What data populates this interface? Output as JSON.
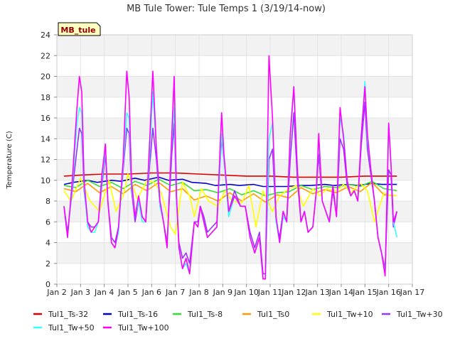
{
  "chart_data": {
    "type": "line",
    "title": "MB Tule Tower: Tule Temps 1 (3/19/14-now)",
    "ylabel": "Temperature (C)",
    "xlabel": "",
    "badge": "MB_tule",
    "ylim": [
      0,
      24
    ],
    "yticks": [
      0,
      2,
      4,
      6,
      8,
      10,
      12,
      14,
      16,
      18,
      20,
      22,
      24
    ],
    "xlim": [
      2,
      17
    ],
    "xtick_labels": [
      "Jan 2",
      "Jan 3",
      "Jan 4",
      "Jan 5",
      "Jan 6",
      "Jan 7",
      "Jan 8",
      "Jan 9",
      "Jan 10",
      "Jan 11",
      "Jan 12",
      "Jan 13",
      "Jan 14",
      "Jan 15",
      "Jan 16",
      "Jan 17"
    ],
    "grid": true,
    "legend_position": "bottom",
    "series": [
      {
        "name": "Tul1_Ts-32",
        "color": "#dd0000",
        "x": [
          2.3,
          3,
          4,
          5,
          6,
          7,
          8,
          9,
          10,
          11,
          12,
          13,
          14,
          15,
          15.5,
          16.35
        ],
        "y": [
          10.4,
          10.5,
          10.6,
          10.6,
          10.7,
          10.7,
          10.6,
          10.5,
          10.4,
          10.4,
          10.3,
          10.3,
          10.3,
          10.4,
          10.4,
          10.4
        ]
      },
      {
        "name": "Tul1_Ts-16",
        "color": "#0000cc",
        "x": [
          2.3,
          2.7,
          3.3,
          3.7,
          4.3,
          4.7,
          5.3,
          5.7,
          6.3,
          6.7,
          7.3,
          7.7,
          8.3,
          8.7,
          9.3,
          9.7,
          10.3,
          10.7,
          11.3,
          11.7,
          12.3,
          12.7,
          13.3,
          13.7,
          14.3,
          14.7,
          15.3,
          15.7,
          16.35
        ],
        "y": [
          9.6,
          9.8,
          10.0,
          9.8,
          10.0,
          9.9,
          10.2,
          10.0,
          10.3,
          10.0,
          10.1,
          9.8,
          9.7,
          9.5,
          9.6,
          9.5,
          9.6,
          9.4,
          9.4,
          9.4,
          9.5,
          9.5,
          9.6,
          9.5,
          9.6,
          9.5,
          9.7,
          9.6,
          9.6
        ]
      },
      {
        "name": "Tul1_Ts-8",
        "color": "#33dd33",
        "x": [
          2.3,
          2.8,
          3.3,
          3.8,
          4.3,
          4.8,
          5.3,
          5.8,
          6.3,
          6.8,
          7.3,
          7.8,
          8.3,
          8.8,
          9.3,
          9.8,
          10.3,
          10.8,
          11.3,
          11.8,
          12.3,
          12.8,
          13.3,
          13.8,
          14.3,
          14.8,
          15.3,
          15.8,
          16.35
        ],
        "y": [
          9.5,
          9.3,
          10.0,
          9.4,
          9.8,
          9.2,
          9.9,
          9.5,
          10.1,
          9.5,
          9.8,
          9.0,
          9.1,
          8.8,
          9.2,
          8.6,
          9.0,
          8.5,
          8.8,
          8.9,
          9.5,
          9.1,
          9.4,
          9.3,
          9.6,
          9.4,
          9.9,
          9.2,
          9.0
        ]
      },
      {
        "name": "Tul1_Ts0",
        "color": "#ff9900",
        "x": [
          2.3,
          2.8,
          3.3,
          3.8,
          4.3,
          4.8,
          5.3,
          5.8,
          6.3,
          6.8,
          7.3,
          7.8,
          8.3,
          8.8,
          9.3,
          9.8,
          10.3,
          10.8,
          11.3,
          11.8,
          12.3,
          12.8,
          13.3,
          13.8,
          14.3,
          14.8,
          15.3,
          15.8,
          16.35
        ],
        "y": [
          9.2,
          8.9,
          9.7,
          8.8,
          9.4,
          8.7,
          9.6,
          9.0,
          9.8,
          8.9,
          9.2,
          8.1,
          8.5,
          8.0,
          8.8,
          8.0,
          8.7,
          7.9,
          8.6,
          8.3,
          9.3,
          8.7,
          9.1,
          8.8,
          9.4,
          8.9,
          9.8,
          8.6,
          8.5
        ]
      },
      {
        "name": "Tul1_Tw+10",
        "color": "#ffff00",
        "x": [
          2.3,
          2.6,
          3.0,
          3.4,
          3.8,
          4.2,
          4.5,
          4.8,
          5.0,
          5.4,
          5.8,
          6.1,
          6.4,
          6.8,
          7.0,
          7.3,
          7.6,
          7.8,
          8.1,
          8.4,
          8.8,
          9.1,
          9.4,
          9.8,
          10.1,
          10.4,
          10.7,
          11.1,
          11.4,
          11.8,
          12.1,
          12.4,
          12.8,
          13.1,
          13.4,
          13.8,
          14.1,
          14.4,
          14.8,
          15.1,
          15.4,
          15.8,
          16.1,
          16.35
        ],
        "y": [
          9.0,
          8.0,
          10.2,
          8.0,
          7.0,
          10.0,
          7.0,
          8.5,
          10.6,
          8.2,
          10.0,
          9.8,
          8.8,
          5.5,
          4.8,
          9.8,
          8.5,
          6.5,
          9.2,
          8.0,
          7.5,
          9.0,
          8.0,
          7.8,
          9.5,
          5.5,
          9.0,
          7.0,
          8.5,
          9.2,
          9.5,
          7.5,
          9.2,
          8.5,
          9.2,
          9.0,
          9.6,
          8.8,
          9.7,
          9.0,
          6.0,
          8.8,
          8.5,
          8.5
        ]
      },
      {
        "name": "Tul1_Tw+30",
        "color": "#9933ff",
        "x": [
          2.3,
          2.45,
          2.65,
          2.85,
          2.95,
          3.05,
          3.15,
          3.3,
          3.45,
          3.6,
          3.75,
          3.9,
          4.05,
          4.15,
          4.3,
          4.45,
          4.6,
          4.8,
          4.95,
          5.05,
          5.15,
          5.3,
          5.45,
          5.6,
          5.75,
          5.9,
          6.05,
          6.2,
          6.35,
          6.5,
          6.65,
          6.85,
          6.95,
          7.05,
          7.15,
          7.3,
          7.45,
          7.6,
          7.8,
          7.95,
          8.05,
          8.2,
          8.35,
          8.55,
          8.75,
          8.95,
          9.05,
          9.25,
          9.5,
          9.75,
          9.95,
          10.15,
          10.35,
          10.55,
          10.7,
          10.8,
          10.95,
          11.1,
          11.25,
          11.4,
          11.55,
          11.7,
          11.85,
          12.0,
          12.15,
          12.3,
          12.45,
          12.6,
          12.8,
          12.95,
          13.05,
          13.2,
          13.35,
          13.5,
          13.65,
          13.8,
          13.95,
          14.1,
          14.25,
          14.4,
          14.55,
          14.7,
          14.85,
          15.0,
          15.1,
          15.25,
          15.4,
          15.55,
          15.7,
          15.85,
          16.0,
          16.1,
          16.2,
          16.35
        ],
        "y": [
          7.5,
          5.0,
          9.0,
          13.0,
          15.0,
          14.5,
          9.0,
          6.0,
          5.5,
          5.5,
          6.0,
          9.5,
          12.5,
          8.0,
          4.5,
          4.0,
          5.5,
          11.0,
          15.0,
          14.5,
          9.0,
          6.0,
          8.0,
          6.5,
          6.0,
          11.0,
          15.0,
          12.0,
          7.5,
          6.0,
          4.0,
          12.5,
          15.5,
          8.0,
          4.0,
          2.5,
          3.0,
          2.0,
          6.0,
          6.0,
          7.5,
          6.5,
          5.0,
          5.5,
          6.0,
          14.0,
          12.0,
          7.0,
          9.0,
          7.5,
          7.5,
          5.0,
          3.5,
          5.0,
          1.0,
          1.0,
          12.0,
          13.0,
          6.0,
          4.5,
          7.0,
          6.0,
          12.0,
          16.5,
          10.0,
          6.0,
          7.0,
          5.0,
          5.5,
          9.0,
          12.5,
          8.0,
          7.0,
          6.0,
          9.0,
          6.5,
          14.0,
          13.0,
          9.5,
          8.5,
          9.0,
          8.0,
          13.5,
          17.5,
          13.0,
          10.5,
          8.0,
          4.5,
          3.0,
          1.5,
          11.0,
          10.5,
          5.5,
          7.0
        ]
      },
      {
        "name": "Tul1_Tw+50",
        "color": "#33ffff",
        "x": [
          2.3,
          2.45,
          2.65,
          2.85,
          2.95,
          3.05,
          3.15,
          3.3,
          3.45,
          3.6,
          3.75,
          3.9,
          4.05,
          4.15,
          4.3,
          4.45,
          4.6,
          4.8,
          4.95,
          5.05,
          5.15,
          5.3,
          5.45,
          5.6,
          5.75,
          5.9,
          6.05,
          6.2,
          6.35,
          6.5,
          6.65,
          6.85,
          6.95,
          7.05,
          7.15,
          7.3,
          7.45,
          7.6,
          7.8,
          7.95,
          8.05,
          8.2,
          8.35,
          8.55,
          8.75,
          8.95,
          9.05,
          9.25,
          9.5,
          9.75,
          9.95,
          10.15,
          10.35,
          10.55,
          10.7,
          10.8,
          10.95,
          11.1,
          11.25,
          11.4,
          11.55,
          11.7,
          11.85,
          12.0,
          12.15,
          12.3,
          12.45,
          12.6,
          12.8,
          12.95,
          13.05,
          13.2,
          13.35,
          13.5,
          13.65,
          13.8,
          13.95,
          14.1,
          14.25,
          14.4,
          14.55,
          14.7,
          14.85,
          15.0,
          15.1,
          15.25,
          15.4,
          15.55,
          15.7,
          15.85,
          16.0,
          16.1,
          16.2,
          16.35
        ],
        "y": [
          7.5,
          4.5,
          9.5,
          15.5,
          17.0,
          16.5,
          9.5,
          5.5,
          5.0,
          5.0,
          6.0,
          10.0,
          13.0,
          8.0,
          4.0,
          3.5,
          5.0,
          11.5,
          16.5,
          16.0,
          9.5,
          6.5,
          8.0,
          6.0,
          6.0,
          12.0,
          18.5,
          13.0,
          7.5,
          6.0,
          3.5,
          14.0,
          17.0,
          8.0,
          3.5,
          1.5,
          2.0,
          1.0,
          6.0,
          5.5,
          7.5,
          6.0,
          4.5,
          5.0,
          5.5,
          14.5,
          12.0,
          6.5,
          8.5,
          7.5,
          7.5,
          4.5,
          3.0,
          4.5,
          0.5,
          0.5,
          14.0,
          15.5,
          6.0,
          4.0,
          6.5,
          6.0,
          14.0,
          19.0,
          11.0,
          6.0,
          7.0,
          5.0,
          5.5,
          9.0,
          14.0,
          8.0,
          7.0,
          6.0,
          9.5,
          6.5,
          16.0,
          14.5,
          10.0,
          8.5,
          9.0,
          8.0,
          14.5,
          19.5,
          14.0,
          11.0,
          8.0,
          4.5,
          3.0,
          1.0,
          15.5,
          11.5,
          6.0,
          4.5
        ]
      },
      {
        "name": "Tul1_Tw+100",
        "color": "#ff00ff",
        "x": [
          2.3,
          2.45,
          2.65,
          2.85,
          2.95,
          3.05,
          3.15,
          3.3,
          3.45,
          3.6,
          3.75,
          3.9,
          4.05,
          4.15,
          4.3,
          4.45,
          4.6,
          4.8,
          4.95,
          5.05,
          5.15,
          5.3,
          5.45,
          5.6,
          5.75,
          5.9,
          6.05,
          6.2,
          6.35,
          6.5,
          6.65,
          6.85,
          6.95,
          7.05,
          7.15,
          7.3,
          7.45,
          7.6,
          7.8,
          7.95,
          8.05,
          8.2,
          8.35,
          8.55,
          8.75,
          8.95,
          9.05,
          9.25,
          9.5,
          9.75,
          9.95,
          10.15,
          10.35,
          10.55,
          10.7,
          10.8,
          10.95,
          11.1,
          11.25,
          11.4,
          11.55,
          11.7,
          11.85,
          12.0,
          12.15,
          12.3,
          12.45,
          12.6,
          12.8,
          12.95,
          13.05,
          13.2,
          13.35,
          13.5,
          13.65,
          13.8,
          13.95,
          14.1,
          14.25,
          14.4,
          14.55,
          14.7,
          14.85,
          15.0,
          15.1,
          15.25,
          15.4,
          15.55,
          15.7,
          15.85,
          16.0,
          16.1,
          16.2,
          16.35
        ],
        "y": [
          7.5,
          4.5,
          10.0,
          17.0,
          20.0,
          18.5,
          10.0,
          6.0,
          5.0,
          5.5,
          6.0,
          10.5,
          13.5,
          8.0,
          4.0,
          3.5,
          5.5,
          12.0,
          20.5,
          18.0,
          10.0,
          6.5,
          8.5,
          6.5,
          6.0,
          13.0,
          20.5,
          13.0,
          8.0,
          6.0,
          3.5,
          14.5,
          20.0,
          8.5,
          3.5,
          1.5,
          2.5,
          1.0,
          6.0,
          5.5,
          7.5,
          6.0,
          4.5,
          5.0,
          5.5,
          16.5,
          12.5,
          7.0,
          8.5,
          7.5,
          7.5,
          4.5,
          3.0,
          4.5,
          0.5,
          0.5,
          22.0,
          16.0,
          6.5,
          4.0,
          7.0,
          6.0,
          14.5,
          19.0,
          11.0,
          6.0,
          7.0,
          5.0,
          5.5,
          9.0,
          14.5,
          8.0,
          7.0,
          6.0,
          9.5,
          6.5,
          17.0,
          14.0,
          10.0,
          8.5,
          9.0,
          8.0,
          14.5,
          19.0,
          14.5,
          11.0,
          8.0,
          4.5,
          3.0,
          0.8,
          15.5,
          11.5,
          6.0,
          7.0
        ]
      }
    ]
  }
}
